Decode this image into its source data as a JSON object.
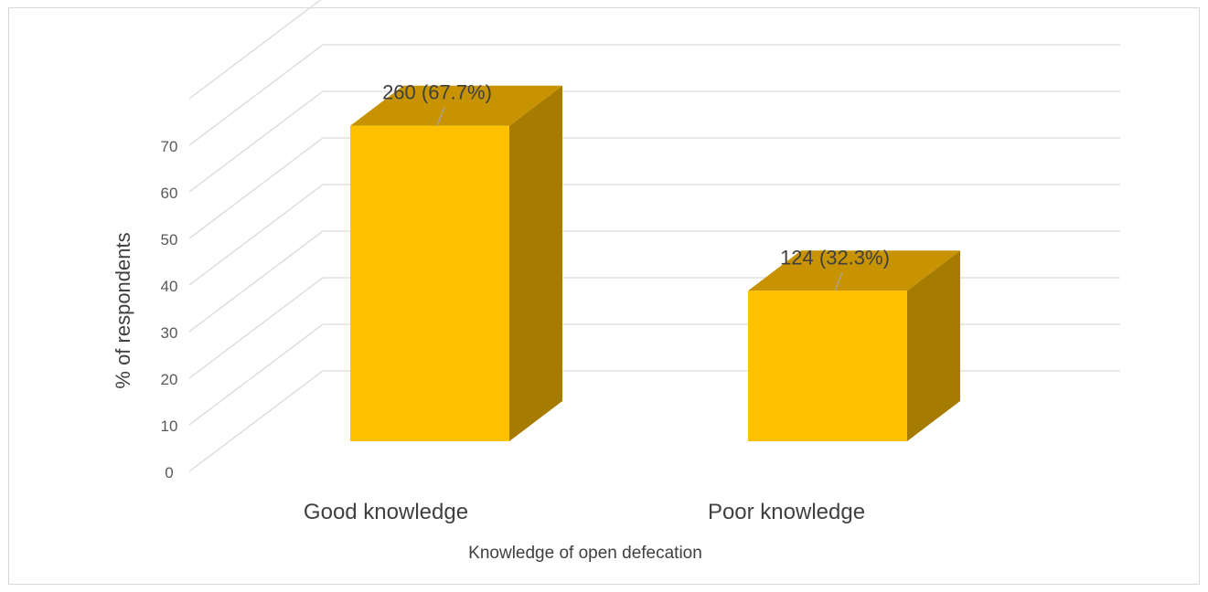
{
  "chart_data": {
    "type": "bar",
    "style": "3d-column",
    "categories": [
      "Good knowledge",
      "Poor knowledge"
    ],
    "values": [
      67.7,
      32.3
    ],
    "data_labels": [
      "260 (67.7%)",
      "124 (32.3%)"
    ],
    "xlabel": "Knowledge of open defecation",
    "ylabel": "% of respondents",
    "ylim": [
      0,
      70
    ],
    "yticks": [
      0,
      10,
      20,
      30,
      40,
      50,
      60,
      70
    ],
    "grid": true,
    "legend": "none",
    "colors": {
      "bar_front": "#FFC000",
      "bar_top": "#C79300",
      "bar_side": "#A67C00",
      "gridline": "#d9d9d9"
    }
  }
}
